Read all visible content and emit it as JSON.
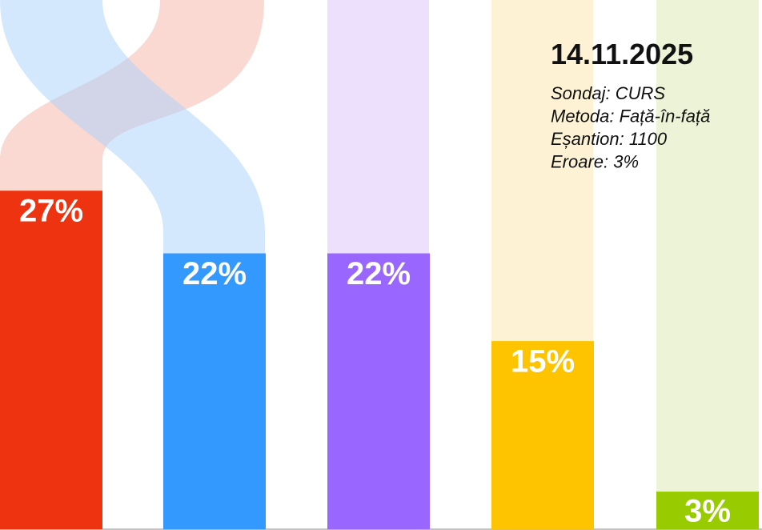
{
  "chart_data": {
    "type": "bar",
    "title": "14.11.2025",
    "annotations": [
      "Sondaj: CURS",
      "Metoda: Față-în-față",
      "Eșantion: 1100",
      "Eroare: 3%"
    ],
    "values": [
      27,
      22,
      22,
      15,
      3
    ],
    "value_labels": [
      "27%",
      "22%",
      "22%",
      "15%",
      "3%"
    ],
    "colors": [
      "#ee3311",
      "#3399ff",
      "#9966ff",
      "#ffc400",
      "#99cc00"
    ]
  }
}
